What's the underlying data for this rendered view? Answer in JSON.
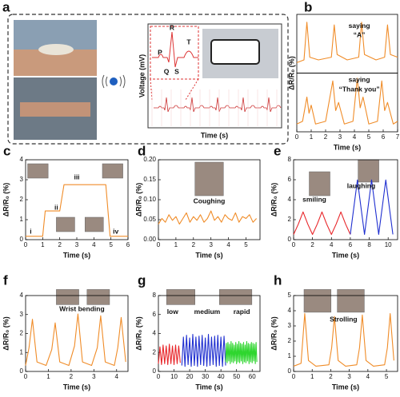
{
  "panel_a": {
    "label": "a",
    "ylabel": "Voltage (mV)",
    "xlabel": "Time (s)",
    "peaks": [
      "P",
      "R",
      "Q",
      "S",
      "T"
    ]
  },
  "chart_data": [
    {
      "type": "line",
      "label": "b",
      "xlabel": "Time (s)",
      "ylabel": "ΔR/R₀ (%)",
      "xlim": [
        0,
        7
      ],
      "xticks": [
        0,
        1,
        2,
        3,
        4,
        5,
        6,
        7
      ],
      "annotations": [
        "saying",
        "“A”",
        "saying",
        "“Thank you”"
      ],
      "series": [
        {
          "color": "#f08c28",
          "ylim": [
            0,
            1
          ],
          "x": [
            0,
            0.5,
            0.7,
            0.9,
            1.5,
            2.4,
            2.6,
            2.8,
            3.5,
            4.3,
            4.5,
            4.7,
            5.5,
            6.1,
            6.3,
            6.5,
            7
          ],
          "values": [
            0.15,
            0.2,
            0.9,
            0.25,
            0.2,
            0.25,
            0.85,
            0.3,
            0.2,
            0.25,
            0.9,
            0.3,
            0.2,
            0.25,
            0.85,
            0.3,
            0.25
          ]
        },
        {
          "color": "#f08c28",
          "ylim": [
            0,
            1
          ],
          "x": [
            0,
            0.4,
            0.7,
            0.85,
            1.0,
            1.3,
            2.0,
            2.5,
            2.7,
            2.9,
            3.3,
            3.9,
            4.2,
            4.4,
            4.6,
            5.0,
            5.6,
            5.9,
            6.1,
            6.3,
            6.7,
            7
          ],
          "values": [
            0.1,
            0.15,
            0.6,
            0.3,
            0.45,
            0.1,
            0.15,
            0.9,
            0.35,
            0.5,
            0.1,
            0.15,
            0.95,
            0.4,
            0.6,
            0.1,
            0.15,
            0.9,
            0.35,
            0.5,
            0.1,
            0.15
          ]
        }
      ]
    },
    {
      "type": "line",
      "label": "c",
      "xlabel": "Time (s)",
      "ylabel": "ΔR/R₀ (%)",
      "xlim": [
        0,
        6
      ],
      "xticks": [
        0,
        1,
        2,
        3,
        4,
        5,
        6
      ],
      "ylim": [
        0,
        4
      ],
      "yticks": [
        0,
        1,
        2,
        3,
        4
      ],
      "annotations": [
        "i",
        "ii",
        "iii",
        "iv"
      ],
      "series": [
        {
          "color": "#f08c28",
          "x": [
            0,
            1.0,
            1.15,
            2.0,
            2.25,
            4.7,
            4.95,
            6
          ],
          "values": [
            0.05,
            0.05,
            1.4,
            1.4,
            2.8,
            2.8,
            0.05,
            0.05
          ]
        }
      ]
    },
    {
      "type": "line",
      "label": "d",
      "xlabel": "Time (s)",
      "ylabel": "ΔR/R₀ (%)",
      "xlim": [
        0,
        5.8
      ],
      "xticks": [
        0,
        1,
        2,
        3,
        4,
        5
      ],
      "ylim": [
        0,
        0.2
      ],
      "yticks": [
        {
          "value": 0,
          "label": "0.00"
        },
        {
          "value": 0.05,
          "label": "0.05"
        },
        {
          "value": 0.1,
          "label": "0.10"
        },
        {
          "value": 0.15,
          "label": "0.15"
        },
        {
          "value": 0.2,
          "label": "0.20"
        }
      ],
      "annotations": [
        "Coughing"
      ],
      "series": [
        {
          "color": "#f08c28",
          "x": [
            0,
            0.2,
            0.4,
            0.6,
            0.8,
            1.0,
            1.2,
            1.4,
            1.6,
            1.8,
            2.0,
            2.2,
            2.4,
            2.6,
            2.8,
            3.0,
            3.2,
            3.4,
            3.6,
            3.8,
            4.0,
            4.2,
            4.4,
            4.6,
            4.8,
            5.0,
            5.2,
            5.4,
            5.6
          ],
          "values": [
            0.035,
            0.05,
            0.04,
            0.06,
            0.045,
            0.055,
            0.035,
            0.05,
            0.065,
            0.04,
            0.055,
            0.045,
            0.06,
            0.04,
            0.05,
            0.07,
            0.045,
            0.055,
            0.04,
            0.06,
            0.05,
            0.045,
            0.065,
            0.04,
            0.055,
            0.05,
            0.06,
            0.04,
            0.05
          ]
        }
      ]
    },
    {
      "type": "line",
      "label": "e",
      "xlabel": "Time (s)",
      "ylabel": "ΔR/R₀ (%)",
      "xlim": [
        0,
        11
      ],
      "xticks": [
        0,
        2,
        4,
        6,
        8,
        10
      ],
      "ylim": [
        0,
        8
      ],
      "yticks": [
        0,
        2,
        4,
        6,
        8
      ],
      "annotations": [
        "smiling",
        "laughing"
      ],
      "series": [
        {
          "color": "#e8262a",
          "x": [
            0,
            0.5,
            1,
            1.5,
            2,
            2.5,
            3,
            3.5,
            4,
            4.5,
            5,
            5.5,
            6
          ],
          "values": [
            0.3,
            1.4,
            2.7,
            1.4,
            0.3,
            1.4,
            2.7,
            1.4,
            0.3,
            1.4,
            2.7,
            1.4,
            0.3
          ]
        },
        {
          "color": "#1f2fd0",
          "x": [
            6,
            6.375,
            6.75,
            7.125,
            7.5,
            7.875,
            8.25,
            8.625,
            9,
            9.375,
            9.75,
            10.125,
            10.5
          ],
          "values": [
            0.3,
            3.2,
            6.1,
            3.2,
            0.3,
            3.2,
            6.1,
            3.2,
            0.3,
            3.2,
            6.1,
            3.2,
            0.3
          ]
        }
      ]
    },
    {
      "type": "line",
      "label": "f",
      "xlabel": "Time (s)",
      "ylabel": "ΔR/R₀ (%)",
      "xlim": [
        0,
        4.5
      ],
      "xticks": [
        0,
        1,
        2,
        3,
        4
      ],
      "ylim": [
        0,
        4
      ],
      "yticks": [
        0,
        1,
        2,
        3,
        4
      ],
      "annotations": [
        "Wrist bending"
      ],
      "series": [
        {
          "color": "#f08c28",
          "x": [
            0,
            0.15,
            0.3,
            0.5,
            0.9,
            1.15,
            1.3,
            1.5,
            1.9,
            2.15,
            2.3,
            2.5,
            2.9,
            3.15,
            3.3,
            3.5,
            3.9,
            4.05,
            4.2,
            4.4
          ],
          "values": [
            0.2,
            1.2,
            2.8,
            0.4,
            0.2,
            1.1,
            2.6,
            0.4,
            0.2,
            1.3,
            3.1,
            0.4,
            0.2,
            1.2,
            3.0,
            0.4,
            0.2,
            1.2,
            2.9,
            0.4
          ]
        }
      ]
    },
    {
      "type": "line",
      "label": "g",
      "xlabel": "Time (s)",
      "ylabel": "ΔR/R₀ (%)",
      "xlim": [
        0,
        65
      ],
      "xticks": [
        0,
        10,
        20,
        30,
        40,
        50,
        60
      ],
      "ylim": [
        0,
        8
      ],
      "yticks": [
        0,
        2,
        4,
        6,
        8
      ],
      "annotations": [
        "low",
        "medium",
        "rapid"
      ],
      "series": [
        {
          "color": "#e8262a",
          "x": [
            0,
            1,
            2,
            3,
            4,
            5,
            6,
            7,
            8,
            9,
            10,
            11,
            12,
            13,
            14
          ],
          "values": [
            0.6,
            2.5,
            0.5,
            2.7,
            0.6,
            2.6,
            0.5,
            2.8,
            0.6,
            2.6,
            0.5,
            2.7,
            0.6,
            2.6,
            0.7
          ]
        },
        {
          "color": "#1f2fd0",
          "x": [
            15,
            16,
            17,
            18,
            19,
            20,
            21,
            22,
            23,
            24,
            25,
            26,
            27,
            28,
            29,
            30,
            31,
            32,
            33,
            34,
            35,
            36,
            37,
            38,
            39,
            40,
            41,
            42,
            43
          ],
          "values": [
            0.4,
            3.6,
            0.3,
            3.8,
            0.5,
            3.5,
            0.3,
            3.9,
            0.4,
            3.6,
            0.3,
            3.7,
            0.5,
            3.8,
            0.4,
            3.5,
            0.3,
            3.9,
            0.4,
            3.6,
            0.5,
            3.7,
            0.3,
            3.8,
            0.4,
            3.6,
            0.3,
            3.7,
            0.4
          ]
        },
        {
          "color": "#2fd62f",
          "x": [
            43,
            43.5,
            44,
            44.5,
            45,
            45.5,
            46,
            46.5,
            47,
            47.5,
            48,
            48.5,
            49,
            49.5,
            50,
            50.5,
            51,
            51.5,
            52,
            52.5,
            53,
            53.5,
            54,
            54.5,
            55,
            55.5,
            56,
            56.5,
            57,
            57.5,
            58,
            58.5,
            59,
            59.5,
            60,
            60.5,
            61,
            61.5,
            62,
            62.5,
            63
          ],
          "values": [
            0.8,
            2.9,
            0.7,
            3.0,
            0.9,
            2.8,
            0.6,
            3.1,
            0.8,
            2.9,
            0.7,
            2.7,
            0.9,
            3.0,
            0.6,
            2.8,
            0.8,
            3.1,
            0.7,
            2.9,
            0.9,
            2.8,
            0.6,
            3.0,
            0.8,
            2.7,
            0.7,
            3.1,
            0.9,
            2.9,
            0.6,
            2.8,
            0.8,
            3.0,
            0.7,
            2.9,
            0.9,
            2.8,
            0.6,
            3.0,
            0.8
          ]
        }
      ]
    },
    {
      "type": "line",
      "label": "h",
      "xlabel": "Time (s)",
      "ylabel": "ΔR/R₀ (%)",
      "xlim": [
        0,
        5.6
      ],
      "xticks": [
        0,
        1,
        2,
        3,
        4,
        5
      ],
      "ylim": [
        0,
        5
      ],
      "yticks": [
        0,
        1,
        2,
        3,
        4,
        5
      ],
      "annotations": [
        "Strolling"
      ],
      "series": [
        {
          "color": "#f08c28",
          "x": [
            0,
            0.4,
            0.6,
            0.8,
            1.2,
            1.9,
            2.05,
            2.2,
            2.4,
            2.8,
            3.4,
            3.55,
            3.7,
            3.9,
            4.3,
            4.9,
            5.05,
            5.2,
            5.4
          ],
          "values": [
            0.2,
            0.4,
            3.9,
            0.6,
            0.2,
            0.3,
            1.5,
            3.7,
            0.6,
            0.2,
            0.3,
            1.5,
            3.8,
            0.6,
            0.2,
            0.3,
            1.5,
            3.9,
            0.6
          ]
        }
      ]
    }
  ]
}
